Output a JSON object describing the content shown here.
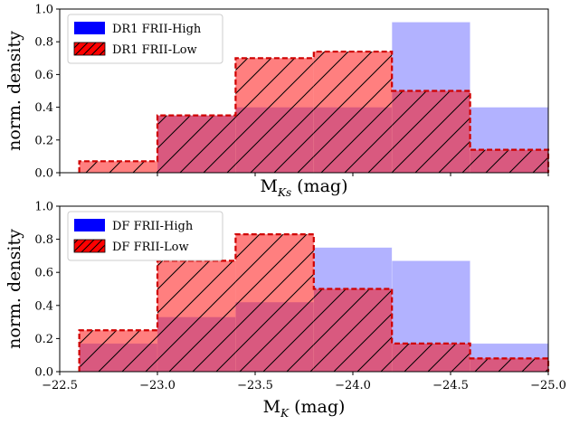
{
  "colors": {
    "high_fill": "#0000ff",
    "high_alpha": 0.3,
    "low_fill": "#ff0000",
    "low_alpha": 0.5,
    "low_edge": "#d00000",
    "hatch": "#000000"
  },
  "chart_data": [
    {
      "type": "bar",
      "bin_edges": [
        -22.6,
        -23.0,
        -23.4,
        -23.8,
        -24.2,
        -24.6,
        -25.0
      ],
      "series": [
        {
          "name": "DR1 FRII-High",
          "values": [
            0.0,
            0.35,
            0.4,
            0.4,
            0.92,
            0.4
          ]
        },
        {
          "name": "DR1 FRII-Low",
          "values": [
            0.07,
            0.35,
            0.7,
            0.74,
            0.5,
            0.14
          ]
        }
      ],
      "xlabel": "M",
      "xlabel_sub": "Ks",
      "xlabel_unit": " (mag)",
      "ylabel": "norm. density",
      "xlim": [
        -22.5,
        -25.0
      ],
      "ylim": [
        0.0,
        1.0
      ],
      "yticks": [
        "0.0",
        "0.2",
        "0.4",
        "0.6",
        "0.8",
        "1.0"
      ],
      "show_xtick_labels": false,
      "legend": "top-left",
      "grid": false
    },
    {
      "type": "bar",
      "bin_edges": [
        -22.6,
        -23.0,
        -23.4,
        -23.8,
        -24.2,
        -24.6,
        -25.0
      ],
      "series": [
        {
          "name": "DF FRII-High",
          "values": [
            0.17,
            0.33,
            0.42,
            0.75,
            0.67,
            0.17
          ]
        },
        {
          "name": "DF FRII-Low",
          "values": [
            0.25,
            0.67,
            0.83,
            0.5,
            0.17,
            0.08
          ]
        }
      ],
      "xlabel": "M",
      "xlabel_sub": "K",
      "xlabel_unit": " (mag)",
      "ylabel": "norm. density",
      "xlim": [
        -22.5,
        -25.0
      ],
      "ylim": [
        0.0,
        1.0
      ],
      "xticks": [
        "−22.5",
        "−23.0",
        "−23.5",
        "−24.0",
        "−24.5",
        "−25.0"
      ],
      "xtick_values": [
        -22.5,
        -23.0,
        -23.5,
        -24.0,
        -24.5,
        -25.0
      ],
      "yticks": [
        "0.0",
        "0.2",
        "0.4",
        "0.6",
        "0.8",
        "1.0"
      ],
      "show_xtick_labels": true,
      "legend": "top-left",
      "grid": false
    }
  ]
}
